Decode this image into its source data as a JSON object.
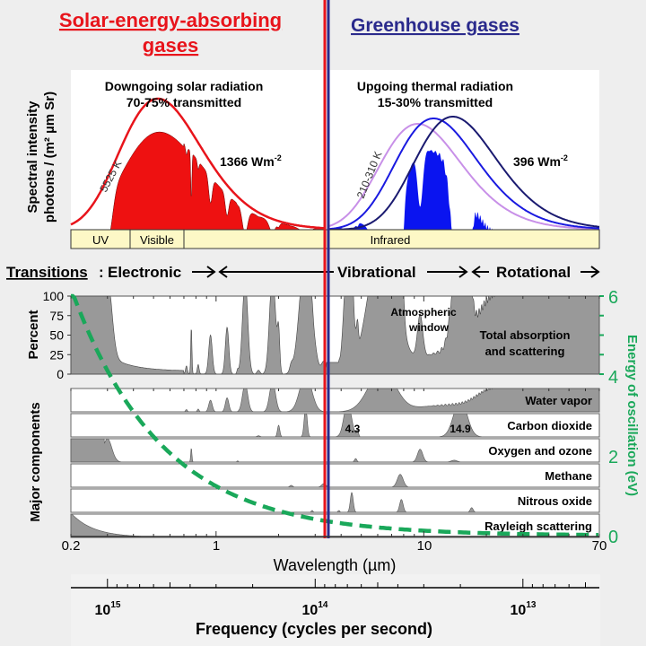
{
  "chart_data": {
    "type": "area",
    "titles": {
      "left": [
        "Solar-energy-absorbing",
        "gases"
      ],
      "right": "Greenhouse gases"
    },
    "colors": {
      "solar": "#e8141b",
      "greenhouse": "#2a2a8c",
      "energy_curve": "#1aa85a",
      "absorption_fill": "#999999",
      "band_fill": "#fdf8c6",
      "thermal_fill": "#0a14f0",
      "curve_210": "#c890e8",
      "curve_260": "#1a1ae0",
      "curve_310": "#1a1a70"
    },
    "x_axis": {
      "label": "Wavelength (µm)",
      "scale": "log",
      "range": [
        0.2,
        70
      ],
      "ticks": [
        "0.2",
        "1",
        "10",
        "70"
      ]
    },
    "frequency_axis": {
      "label": "Frequency (cycles per second)",
      "scale": "log",
      "ticks": [
        {
          "base": "10",
          "exp": "15"
        },
        {
          "base": "10",
          "exp": "14"
        },
        {
          "base": "10",
          "exp": "13"
        }
      ]
    },
    "spectra_panel": {
      "ylabel": [
        "Spectral intensity",
        "photons / (m² µm Sr)"
      ],
      "solar": {
        "title": "Downgoing solar radiation",
        "subtitle": "70-75% transmitted",
        "temperature": "5525 K",
        "flux_value": "1366 Wm",
        "flux_exp": "-2"
      },
      "thermal": {
        "title": "Upgoing thermal radiation",
        "subtitle": "15-30% transmitted",
        "temperature": "210-310 K",
        "flux_value": "396 Wm",
        "flux_exp": "-2"
      },
      "bands": [
        "UV",
        "Visible",
        "Infrared"
      ]
    },
    "transitions": {
      "label": "Transitions",
      "items": [
        "Electronic",
        "Vibrational",
        "Rotational"
      ]
    },
    "total_panel": {
      "ylabel": "Percent",
      "yticks": [
        "100",
        "75",
        "50",
        "25",
        "0"
      ],
      "ylim": [
        0,
        100
      ],
      "annotations": [
        [
          "Atmospheric",
          "window"
        ],
        [
          "Total absorption",
          "and scattering"
        ]
      ]
    },
    "components_ylabel": "Major components",
    "components": [
      {
        "name": "Water vapor"
      },
      {
        "name": "Carbon dioxide",
        "labels": [
          "4.3",
          "14.9"
        ]
      },
      {
        "name": "Oxygen and ozone"
      },
      {
        "name": "Methane"
      },
      {
        "name": "Nitrous oxide"
      },
      {
        "name": "Rayleigh scattering"
      }
    ],
    "energy_axis": {
      "label": "Energy of oscillation (eV)",
      "ticks": [
        "6",
        "4",
        "2",
        "0"
      ],
      "range": [
        0,
        6
      ],
      "relation": "E = 1.24 / wavelength"
    },
    "divider_wavelength_um": 3.4
  }
}
